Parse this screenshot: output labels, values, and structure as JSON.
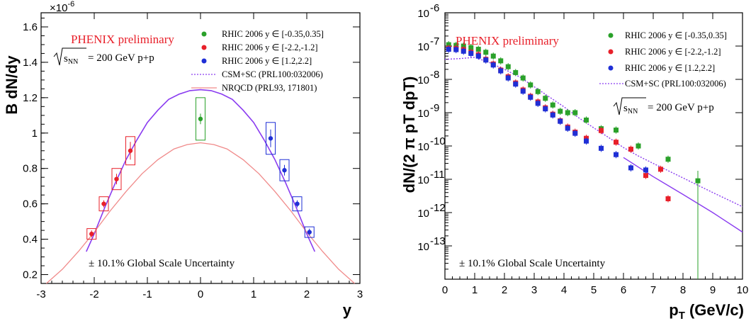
{
  "chart_data": [
    {
      "type": "scatter",
      "xlabel": "y",
      "ylabel": "B dN/dy",
      "y_exponent_label": "×10",
      "y_exponent_power": "-6",
      "xlim": [
        -3,
        3
      ],
      "ylim": [
        0.15,
        1.68
      ],
      "x_ticks": [
        "-3",
        "-2",
        "-1",
        "0",
        "1",
        "2",
        "3"
      ],
      "y_ticks": [
        "0.2",
        "0.4",
        "0.6",
        "0.8",
        "1",
        "1.2",
        "1.4",
        "1.6"
      ],
      "annotation_title": "PHENIX preliminary",
      "energy_label": "= 200 GeV p+p",
      "scale_note": "± 10.1% Global Scale Uncertainty",
      "legend": [
        "RHIC 2006 y ∈ [-0.35,0.35]",
        "RHIC 2006 y ∈ [-2.2,-1.2]",
        "RHIC 2006 y ∈ [1.2,2.2]",
        "CSM+SC (PRL100:032006)",
        "NRQCD (PRL93, 171801)"
      ],
      "series": [
        {
          "name": "RHIC 2006 y ∈ [-0.35,0.35]",
          "color": "#2aa12a",
          "points": [
            {
              "x": 0.0,
              "y": 1.08,
              "err": 0.03,
              "sys": 0.12
            }
          ]
        },
        {
          "name": "RHIC 2006 y ∈ [-2.2,-1.2]",
          "color": "#e8202a",
          "points": [
            {
              "x": -2.05,
              "y": 0.43,
              "err": 0.02,
              "sys": 0.03
            },
            {
              "x": -1.82,
              "y": 0.6,
              "err": 0.02,
              "sys": 0.04
            },
            {
              "x": -1.58,
              "y": 0.74,
              "err": 0.03,
              "sys": 0.06
            },
            {
              "x": -1.32,
              "y": 0.9,
              "err": 0.05,
              "sys": 0.08
            }
          ]
        },
        {
          "name": "RHIC 2006 y ∈ [1.2,2.2]",
          "color": "#1f2fd6",
          "points": [
            {
              "x": 1.32,
              "y": 0.97,
              "err": 0.05,
              "sys": 0.09
            },
            {
              "x": 1.58,
              "y": 0.79,
              "err": 0.03,
              "sys": 0.06
            },
            {
              "x": 1.82,
              "y": 0.6,
              "err": 0.02,
              "sys": 0.04
            },
            {
              "x": 2.05,
              "y": 0.44,
              "err": 0.02,
              "sys": 0.03
            }
          ]
        }
      ],
      "curves": [
        {
          "name": "CSM+SC (PRL100:032006)",
          "color": "#8a3cf0",
          "points": [
            [
              -2.15,
              0.33
            ],
            [
              -2.0,
              0.43
            ],
            [
              -1.8,
              0.58
            ],
            [
              -1.6,
              0.72
            ],
            [
              -1.4,
              0.85
            ],
            [
              -1.2,
              0.96
            ],
            [
              -1.0,
              1.06
            ],
            [
              -0.8,
              1.13
            ],
            [
              -0.6,
              1.19
            ],
            [
              -0.4,
              1.22
            ],
            [
              -0.2,
              1.24
            ],
            [
              0,
              1.245
            ],
            [
              0.2,
              1.24
            ],
            [
              0.4,
              1.22
            ],
            [
              0.6,
              1.19
            ],
            [
              0.8,
              1.13
            ],
            [
              1.0,
              1.06
            ],
            [
              1.2,
              0.96
            ],
            [
              1.4,
              0.85
            ],
            [
              1.6,
              0.72
            ],
            [
              1.8,
              0.58
            ],
            [
              2.0,
              0.43
            ],
            [
              2.15,
              0.33
            ]
          ]
        },
        {
          "name": "NRQCD (PRL93, 171801)",
          "color": "#f08a8a",
          "points": [
            [
              -2.9,
              0.15
            ],
            [
              -2.6,
              0.23
            ],
            [
              -2.3,
              0.33
            ],
            [
              -2.0,
              0.44
            ],
            [
              -1.7,
              0.56
            ],
            [
              -1.4,
              0.67
            ],
            [
              -1.1,
              0.77
            ],
            [
              -0.8,
              0.85
            ],
            [
              -0.5,
              0.91
            ],
            [
              -0.25,
              0.935
            ],
            [
              0,
              0.945
            ],
            [
              0.25,
              0.935
            ],
            [
              0.5,
              0.91
            ],
            [
              0.8,
              0.85
            ],
            [
              1.1,
              0.77
            ],
            [
              1.4,
              0.67
            ],
            [
              1.7,
              0.56
            ],
            [
              2.0,
              0.44
            ],
            [
              2.3,
              0.33
            ],
            [
              2.6,
              0.23
            ],
            [
              2.9,
              0.15
            ]
          ]
        }
      ]
    },
    {
      "type": "scatter",
      "xlabel": "p",
      "xlabel_sub": "T",
      "xlabel_unit": " (GeV/c)",
      "ylabel": "dN/(2 π pT dpT)",
      "ylog": true,
      "xlim": [
        0,
        10
      ],
      "ylim_exp": [
        -14,
        -6
      ],
      "x_ticks": [
        "0",
        "1",
        "2",
        "3",
        "4",
        "5",
        "6",
        "7",
        "8",
        "9",
        "10"
      ],
      "y_tick_base": "10",
      "y_tick_exps": [
        "-13",
        "-12",
        "-11",
        "-10",
        "-9",
        "-8",
        "-7",
        "-6"
      ],
      "annotation_title": "PHENIX preliminary",
      "energy_label": "= 200 GeV p+p",
      "scale_note": "± 10.1% Global Scale Uncertainty",
      "legend": [
        "RHIC 2006 y ∈ [-0.35,0.35]",
        "RHIC 2006 y ∈ [-2.2,-1.2]",
        "RHIC 2006 y ∈ [1.2,2.2]",
        "CSM+SC (PRL100:032006)"
      ],
      "series": [
        {
          "name": "RHIC 2006 y ∈ [-0.35,0.35]",
          "color": "#2aa12a",
          "points": [
            [
              0.125,
              1.1e-07
            ],
            [
              0.375,
              1.05e-07
            ],
            [
              0.625,
              1e-07
            ],
            [
              0.875,
              9e-08
            ],
            [
              1.125,
              8e-08
            ],
            [
              1.375,
              6.5e-08
            ],
            [
              1.625,
              5e-08
            ],
            [
              1.875,
              3.6e-08
            ],
            [
              2.125,
              2.4e-08
            ],
            [
              2.375,
              1.6e-08
            ],
            [
              2.625,
              1.1e-08
            ],
            [
              2.875,
              6.8e-09
            ],
            [
              3.125,
              4.3e-09
            ],
            [
              3.375,
              2.7e-09
            ],
            [
              3.625,
              1.7e-09
            ],
            [
              3.875,
              1.1e-09
            ],
            [
              4.125,
              1e-09
            ],
            [
              4.375,
              1e-09
            ],
            [
              4.75,
              6e-10
            ],
            [
              5.25,
              3.3e-10
            ],
            [
              5.75,
              3e-10
            ],
            [
              6.5,
              1e-10
            ],
            [
              7.5,
              4e-11
            ],
            [
              8.5,
              9e-12
            ]
          ]
        },
        {
          "name": "RHIC 2006 y ∈ [-2.2,-1.2]",
          "color": "#e8202a",
          "points": [
            [
              0.125,
              8.6e-08
            ],
            [
              0.375,
              8.5e-08
            ],
            [
              0.625,
              7.8e-08
            ],
            [
              0.875,
              6.5e-08
            ],
            [
              1.125,
              5.5e-08
            ],
            [
              1.375,
              4e-08
            ],
            [
              1.625,
              2.9e-08
            ],
            [
              1.875,
              1.9e-08
            ],
            [
              2.125,
              1.2e-08
            ],
            [
              2.375,
              7.8e-09
            ],
            [
              2.625,
              4.8e-09
            ],
            [
              2.875,
              3.1e-09
            ],
            [
              3.125,
              2.1e-09
            ],
            [
              3.375,
              1.4e-09
            ],
            [
              3.625,
              9e-10
            ],
            [
              3.875,
              5.7e-10
            ],
            [
              4.125,
              3.7e-10
            ],
            [
              4.375,
              2.6e-10
            ],
            [
              4.75,
              1.7e-10
            ],
            [
              5.25,
              2.9e-10
            ],
            [
              5.75,
              1.3e-10
            ],
            [
              6.25,
              8e-11
            ],
            [
              6.75,
              1.3e-11
            ],
            [
              7.25,
              2e-11
            ],
            [
              7.5,
              2.6e-12
            ]
          ]
        },
        {
          "name": "RHIC 2006 y ∈ [1.2,2.2]",
          "color": "#1f2fd6",
          "points": [
            [
              0.125,
              8e-08
            ],
            [
              0.375,
              7.8e-08
            ],
            [
              0.625,
              7e-08
            ],
            [
              0.875,
              6e-08
            ],
            [
              1.125,
              5e-08
            ],
            [
              1.375,
              3.8e-08
            ],
            [
              1.625,
              2.7e-08
            ],
            [
              1.875,
              1.8e-08
            ],
            [
              2.125,
              1.1e-08
            ],
            [
              2.375,
              7.2e-09
            ],
            [
              2.625,
              4.4e-09
            ],
            [
              2.875,
              2.9e-09
            ],
            [
              3.125,
              1.9e-09
            ],
            [
              3.375,
              1.3e-09
            ],
            [
              3.625,
              8.5e-10
            ],
            [
              3.875,
              5.5e-10
            ],
            [
              4.125,
              3.4e-10
            ],
            [
              4.375,
              2.4e-10
            ],
            [
              4.75,
              1.4e-10
            ],
            [
              5.25,
              8.5e-11
            ],
            [
              5.75,
              5.5e-11
            ],
            [
              6.25,
              2.2e-11
            ],
            [
              6.75,
              1.9e-11
            ]
          ]
        }
      ],
      "curves": [
        {
          "name": "CSM+SC (PRL100:032006)",
          "color": "#8a3cf0",
          "dashed": true,
          "points": [
            [
              0,
              4e-08
            ],
            [
              0.5,
              4.2e-08
            ],
            [
              1.0,
              4.6e-08
            ],
            [
              1.5,
              3.2e-08
            ],
            [
              2.0,
              2e-08
            ],
            [
              2.5,
              1.2e-08
            ],
            [
              3.0,
              6e-09
            ],
            [
              3.5,
              3e-09
            ],
            [
              4.0,
              1.5e-09
            ],
            [
              4.5,
              7e-10
            ],
            [
              5.0,
              3.5e-10
            ],
            [
              5.5,
              1.8e-10
            ],
            [
              6.0,
              9e-11
            ],
            [
              6.5,
              5e-11
            ],
            [
              7.0,
              3e-11
            ],
            [
              8.0,
              1.1e-11
            ],
            [
              9.0,
              4e-12
            ],
            [
              10.0,
              1.5e-12
            ]
          ]
        },
        {
          "name": "CSM+SC solid",
          "color": "#8a3cf0",
          "dashed": false,
          "points": [
            [
              6.0,
              4.5e-11
            ],
            [
              7.0,
              1.2e-11
            ],
            [
              8.0,
              3.5e-12
            ],
            [
              9.0,
              1e-12
            ],
            [
              10.0,
              2.6e-13
            ]
          ]
        }
      ]
    }
  ]
}
